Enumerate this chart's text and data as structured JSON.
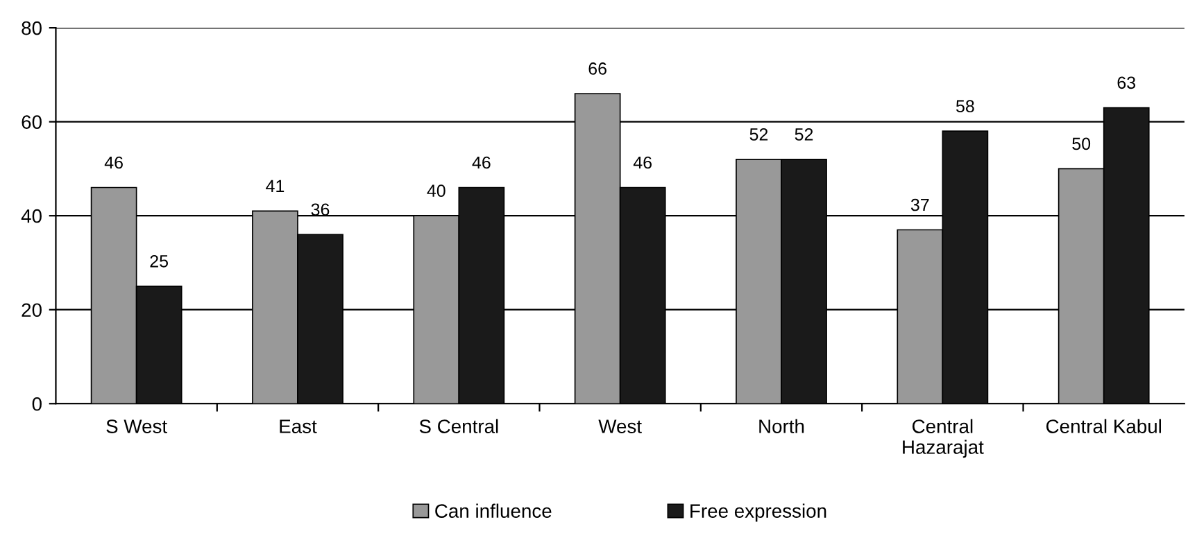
{
  "chart_data": {
    "type": "bar",
    "categories": [
      "S West",
      "East",
      "S Central",
      "West",
      "North",
      "Central\nHazarajat",
      "Central Kabul"
    ],
    "series": [
      {
        "name": "Can influence",
        "color": "#999999",
        "values": [
          46,
          41,
          40,
          66,
          52,
          37,
          50
        ]
      },
      {
        "name": "Free expression",
        "color": "#1a1a1a",
        "values": [
          25,
          36,
          46,
          46,
          52,
          58,
          63
        ]
      }
    ],
    "ylim": [
      0,
      80
    ],
    "yticks": [
      0,
      20,
      40,
      60,
      80
    ],
    "grid": "y",
    "legend": "bottom",
    "data_labels": true
  }
}
